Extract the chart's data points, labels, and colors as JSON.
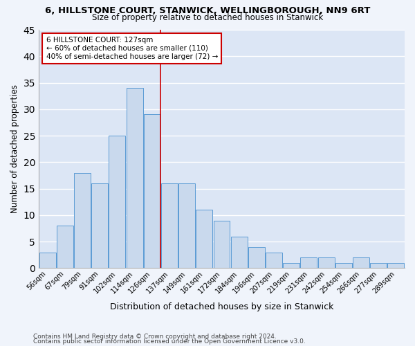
{
  "title1": "6, HILLSTONE COURT, STANWICK, WELLINGBOROUGH, NN9 6RT",
  "title2": "Size of property relative to detached houses in Stanwick",
  "xlabel": "Distribution of detached houses by size in Stanwick",
  "ylabel": "Number of detached properties",
  "categories": [
    "56sqm",
    "67sqm",
    "79sqm",
    "91sqm",
    "102sqm",
    "114sqm",
    "126sqm",
    "137sqm",
    "149sqm",
    "161sqm",
    "172sqm",
    "184sqm",
    "196sqm",
    "207sqm",
    "219sqm",
    "231sqm",
    "242sqm",
    "254sqm",
    "266sqm",
    "277sqm",
    "289sqm"
  ],
  "values": [
    3,
    8,
    18,
    16,
    25,
    34,
    29,
    16,
    16,
    11,
    9,
    6,
    4,
    3,
    1,
    2,
    2,
    1,
    2,
    1,
    1
  ],
  "bar_color": "#c9d9ed",
  "bar_edge_color": "#5b9bd5",
  "background_color": "#dce6f5",
  "grid_color": "#ffffff",
  "vline_x_index": 6.5,
  "vline_color": "#cc0000",
  "annotation_line1": "6 HILLSTONE COURT: 127sqm",
  "annotation_line2": "← 60% of detached houses are smaller (110)",
  "annotation_line3": "40% of semi-detached houses are larger (72) →",
  "annotation_box_edgecolor": "#cc0000",
  "ylim": [
    0,
    45
  ],
  "yticks": [
    0,
    5,
    10,
    15,
    20,
    25,
    30,
    35,
    40,
    45
  ],
  "footer1": "Contains HM Land Registry data © Crown copyright and database right 2024.",
  "footer2": "Contains public sector information licensed under the Open Government Licence v3.0."
}
